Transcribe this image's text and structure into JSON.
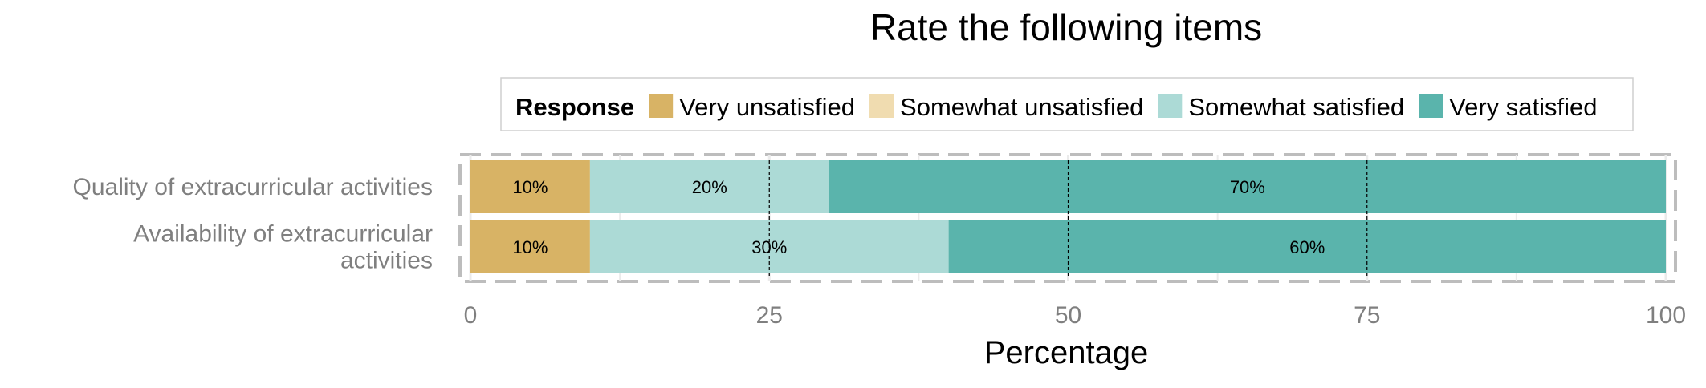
{
  "chart_data": {
    "type": "bar",
    "orientation": "horizontal",
    "stacked": true,
    "title": "Rate the following items",
    "xlabel": "Percentage",
    "ylabel": "",
    "xlim": [
      0,
      100
    ],
    "xticks": [
      "0",
      "25",
      "50",
      "75",
      "100"
    ],
    "grid": true,
    "legend": {
      "title": "Response",
      "placement": "top",
      "entries": [
        "Very unsatisfied",
        "Somewhat unsatisfied",
        "Somewhat satisfied",
        "Very satisfied"
      ]
    },
    "categories": [
      [
        "Quality of extracurricular activities"
      ],
      [
        "Availability of extracurricular",
        "activities"
      ]
    ],
    "series": [
      {
        "name": "Very unsatisfied",
        "color": "#d8b365",
        "values": [
          10,
          10
        ],
        "labels": [
          "10%",
          "10%"
        ]
      },
      {
        "name": "Somewhat unsatisfied",
        "color": "#f0dcb0",
        "values": [
          0,
          0
        ],
        "labels": [
          "",
          ""
        ]
      },
      {
        "name": "Somewhat satisfied",
        "color": "#acdad6",
        "values": [
          20,
          30
        ],
        "labels": [
          "20%",
          "30%"
        ]
      },
      {
        "name": "Very satisfied",
        "color": "#5ab4ac",
        "values": [
          70,
          60
        ],
        "labels": [
          "70%",
          "60%"
        ]
      }
    ]
  }
}
